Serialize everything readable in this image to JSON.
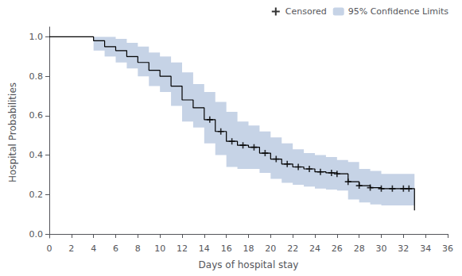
{
  "chart_data": {
    "type": "line",
    "xlabel": "Days of hospital stay",
    "ylabel": "Hospital Probabilities",
    "x": [
      0,
      4,
      5,
      6,
      7,
      8,
      9,
      10,
      11,
      12,
      13,
      14,
      15,
      16,
      17,
      18,
      19,
      20,
      21,
      22,
      23,
      24,
      25,
      26,
      27,
      28,
      29,
      30,
      31,
      32,
      33
    ],
    "series": [
      {
        "type": "step",
        "color": "#000000",
        "values": [
          1.0,
          0.98,
          0.95,
          0.93,
          0.9,
          0.87,
          0.83,
          0.8,
          0.75,
          0.68,
          0.64,
          0.58,
          0.52,
          0.47,
          0.45,
          0.44,
          0.41,
          0.38,
          0.355,
          0.34,
          0.33,
          0.315,
          0.31,
          0.305,
          0.265,
          0.245,
          0.235,
          0.23,
          0.23,
          0.23,
          0.12
        ]
      },
      {
        "type": "scatter",
        "name": "Censored",
        "marker": "plus",
        "color": "#000000",
        "x": [
          14.5,
          15.5,
          16.5,
          17.5,
          18.5,
          19.5,
          20.5,
          21.5,
          22.5,
          23.5,
          24.5,
          25.5,
          26.0,
          27.0,
          28.0,
          29.0,
          30.0,
          31.0,
          32.0,
          32.5
        ],
        "values": [
          0.58,
          0.52,
          0.47,
          0.45,
          0.44,
          0.41,
          0.38,
          0.355,
          0.34,
          0.33,
          0.315,
          0.31,
          0.305,
          0.265,
          0.245,
          0.235,
          0.23,
          0.23,
          0.23,
          0.23
        ]
      },
      {
        "type": "band",
        "name": "95% Confidence Limits",
        "color": "#a8bcd8",
        "upper": [
          1.0,
          1.0,
          1.0,
          0.99,
          0.97,
          0.95,
          0.92,
          0.9,
          0.87,
          0.82,
          0.76,
          0.72,
          0.67,
          0.62,
          0.57,
          0.55,
          0.52,
          0.49,
          0.46,
          0.43,
          0.41,
          0.4,
          0.39,
          0.375,
          0.365,
          0.33,
          0.32,
          0.305,
          0.305,
          0.305,
          0.305
        ],
        "lower": [
          1.0,
          0.93,
          0.9,
          0.87,
          0.84,
          0.8,
          0.75,
          0.72,
          0.65,
          0.57,
          0.54,
          0.46,
          0.4,
          0.34,
          0.33,
          0.33,
          0.31,
          0.28,
          0.26,
          0.25,
          0.24,
          0.23,
          0.225,
          0.22,
          0.175,
          0.16,
          0.15,
          0.145,
          0.145,
          0.145,
          0.145
        ]
      }
    ],
    "xlim": [
      0,
      36
    ],
    "ylim": [
      -0.02,
      1.05
    ],
    "xticks": [
      0,
      2,
      4,
      6,
      8,
      10,
      12,
      14,
      16,
      18,
      20,
      22,
      24,
      26,
      28,
      30,
      32,
      34,
      36
    ],
    "yticks": [
      {
        "value": 0.0,
        "label": "0.0"
      },
      0.2,
      0.4,
      0.6,
      0.8,
      {
        "value": 1.0,
        "label": "1.0"
      }
    ],
    "legend": "upper right",
    "grid": false
  }
}
